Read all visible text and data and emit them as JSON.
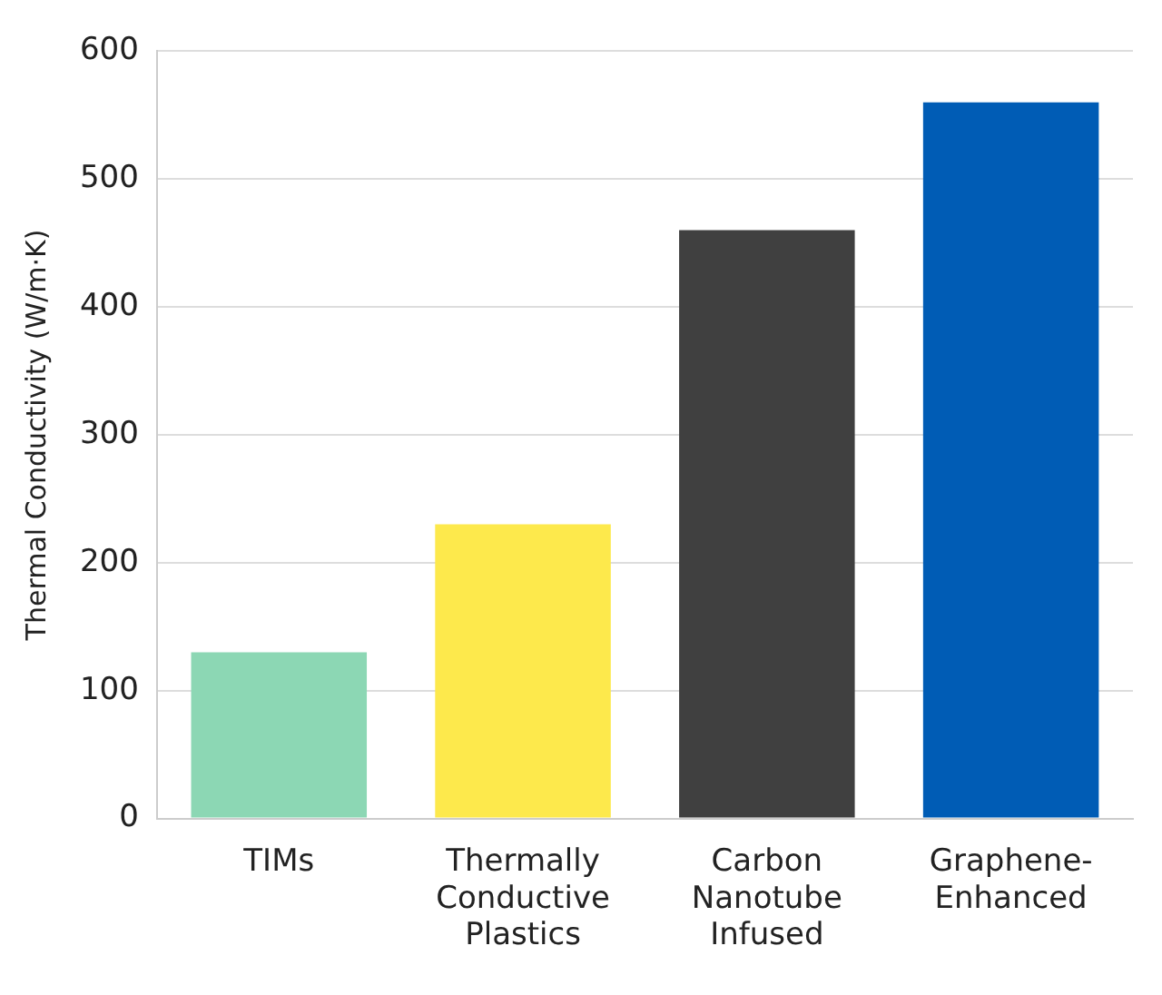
{
  "chart_data": {
    "type": "bar",
    "ylabel": "Thermal Conductivity (W/m·K)",
    "categories": [
      "TIMs",
      "Thermally Conductive Plastics",
      "Carbon Nanotube Infused",
      "Graphene-Enhanced"
    ],
    "values": [
      130,
      230,
      460,
      560
    ],
    "colors": [
      "#8cd7b4",
      "#fde94c",
      "#404040",
      "#005cb5"
    ],
    "ylim": [
      0,
      600
    ],
    "yticks": [
      0,
      100,
      200,
      300,
      400,
      500,
      600
    ],
    "grid": "y",
    "legend": false
  }
}
